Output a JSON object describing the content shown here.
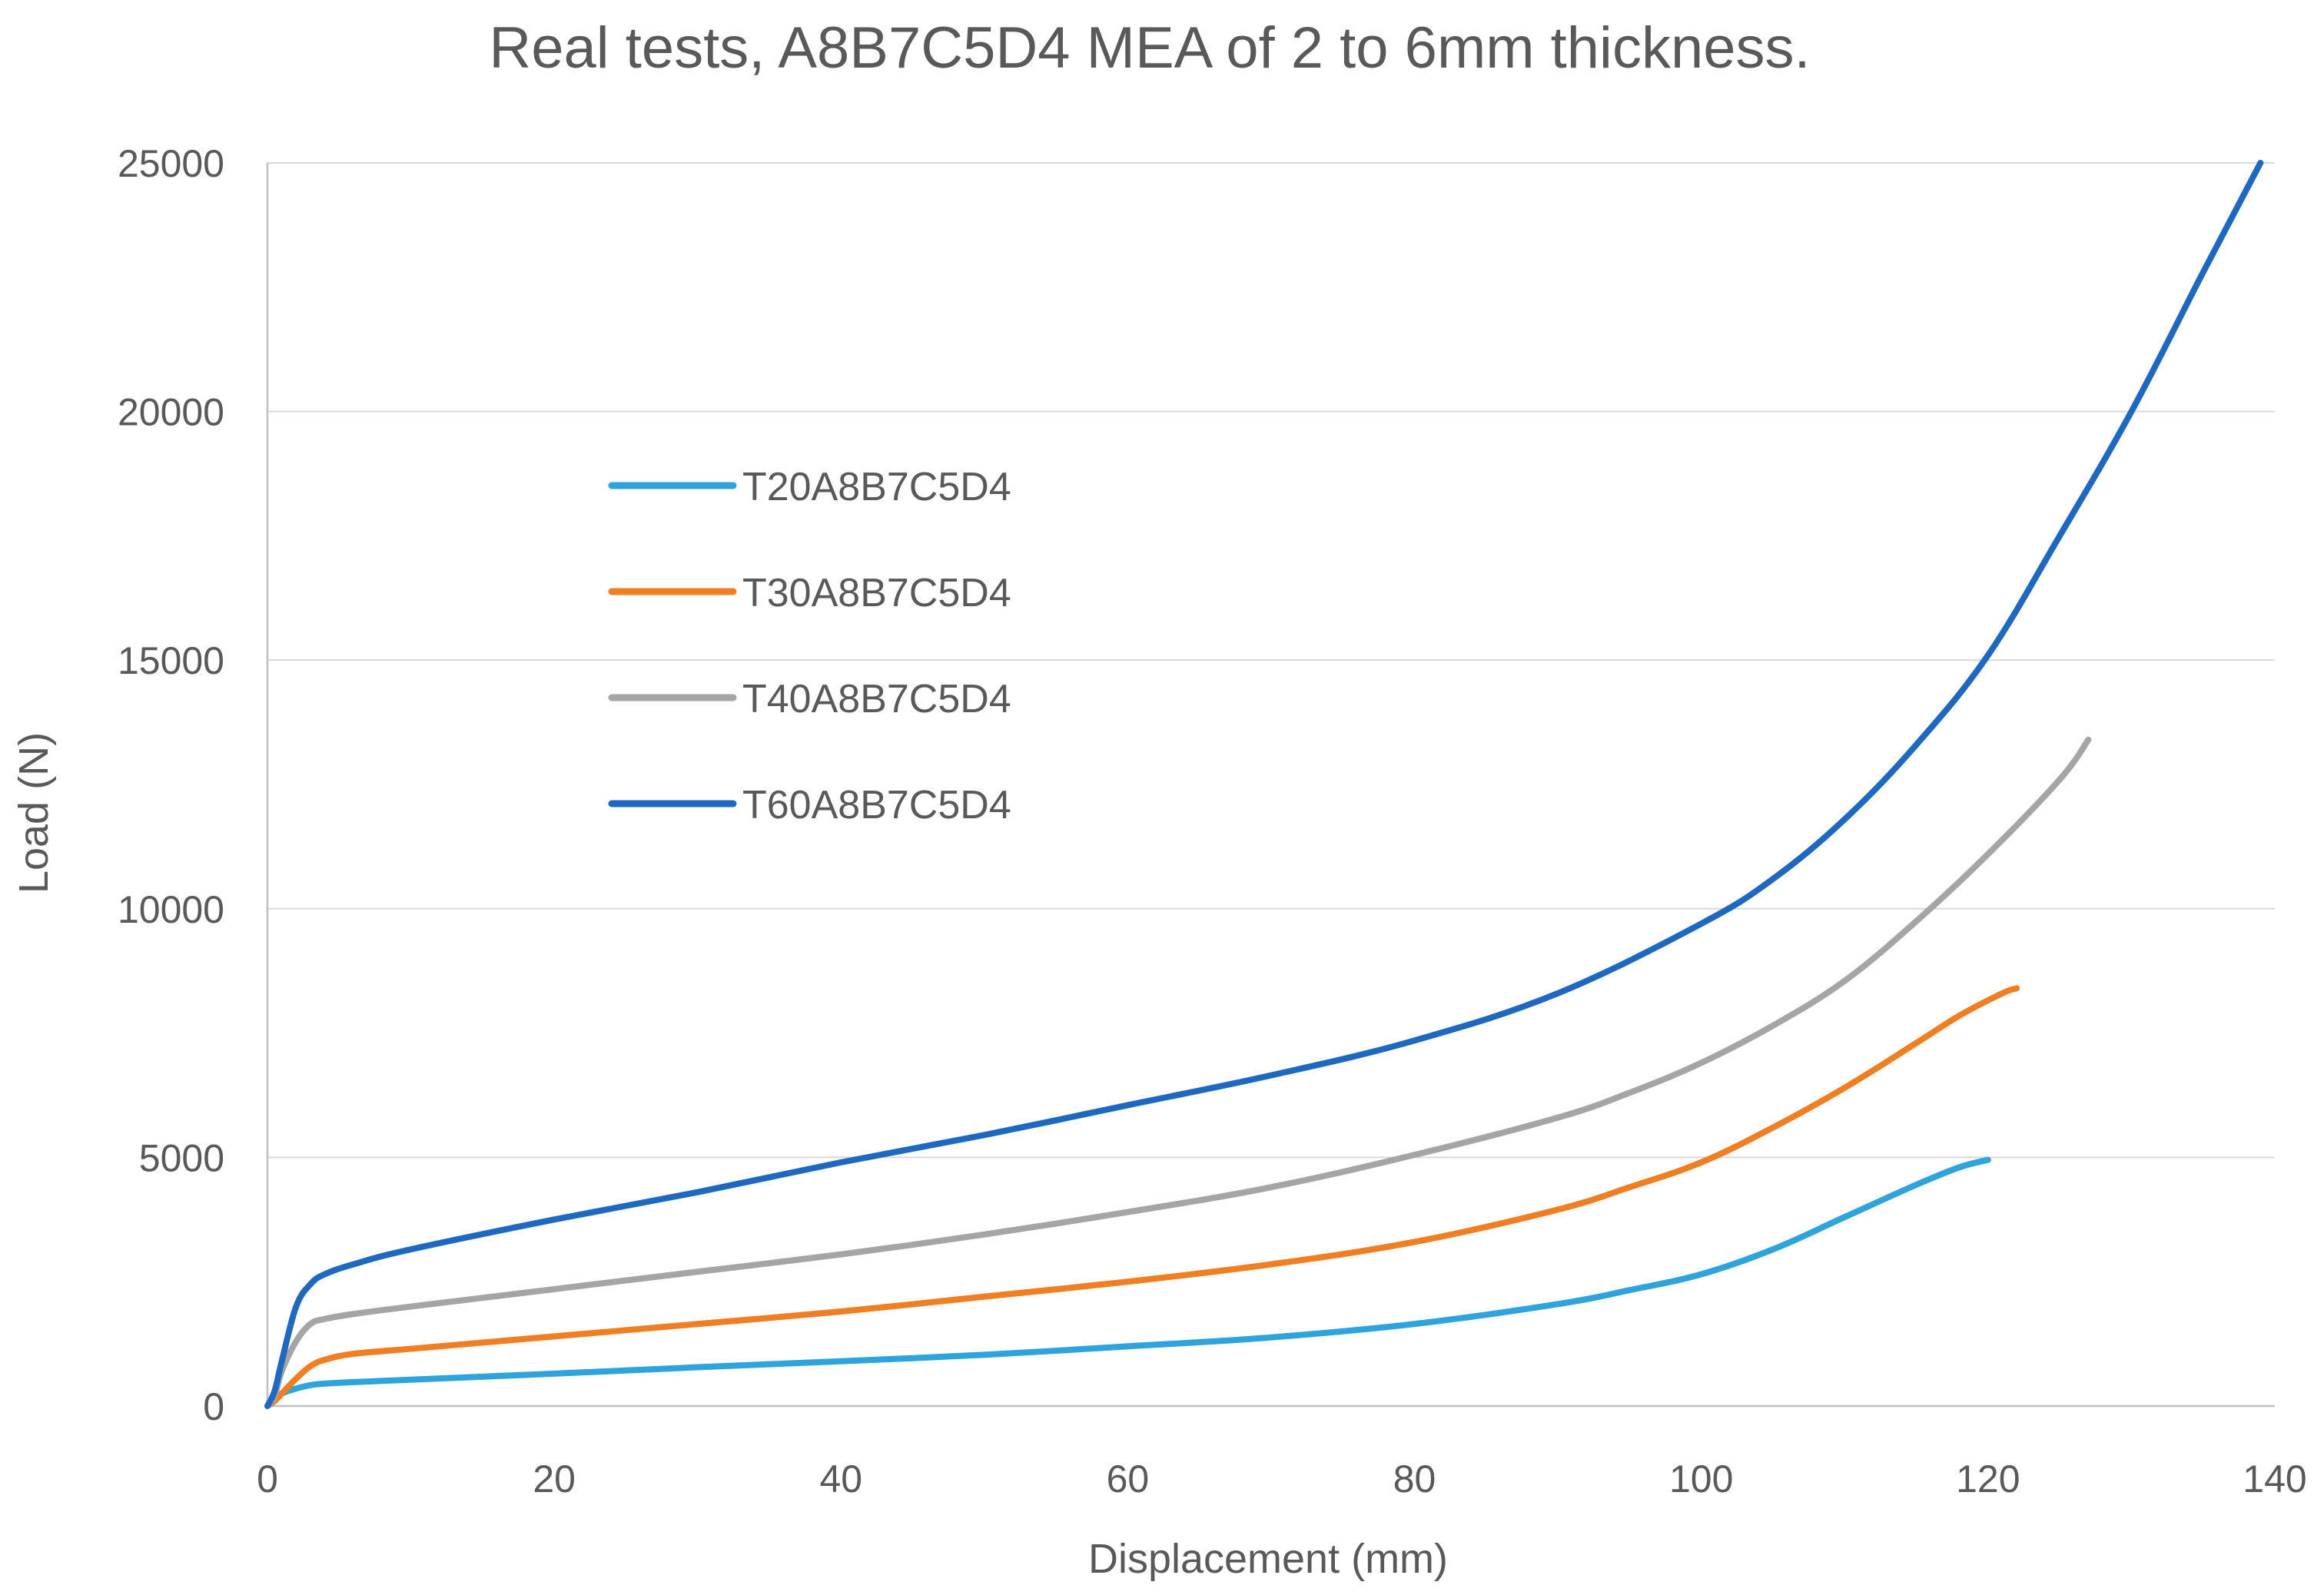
{
  "chart_data": {
    "type": "line",
    "title": "Real tests, A8B7C5D4 MEA of 2 to 6mm thickness.",
    "xlabel": "Displacement (mm)",
    "ylabel": "Load (N)",
    "xlim": [
      0,
      140
    ],
    "ylim": [
      0,
      25000
    ],
    "x_ticks": [
      0,
      20,
      40,
      60,
      80,
      100,
      120,
      140
    ],
    "y_ticks": [
      0,
      5000,
      10000,
      15000,
      20000,
      25000
    ],
    "x_tick_labels": [
      "0",
      "20",
      "40",
      "60",
      "80",
      "100",
      "120",
      "140"
    ],
    "y_tick_labels": [
      "0",
      "5000",
      "10000",
      "15000",
      "20000",
      "25000"
    ],
    "grid": "horizontal",
    "legend_position": "upper-left inside plot",
    "series": [
      {
        "name": "T20A8B7C5D4",
        "color": "#2FA3DC",
        "x": [
          0,
          0.5,
          1,
          2,
          3,
          4,
          6,
          10,
          20,
          30,
          40,
          50,
          60,
          70,
          80,
          90,
          95,
          100,
          105,
          110,
          115,
          118,
          120
        ],
        "y": [
          0,
          100,
          250,
          350,
          420,
          450,
          480,
          530,
          650,
          780,
          900,
          1030,
          1200,
          1380,
          1650,
          2050,
          2330,
          2650,
          3150,
          3800,
          4450,
          4800,
          4950
        ]
      },
      {
        "name": "T30A8B7C5D4",
        "color": "#F07F23",
        "x": [
          0,
          0.5,
          1,
          2,
          3,
          4,
          6,
          10,
          20,
          30,
          40,
          50,
          60,
          70,
          80,
          90,
          95,
          100,
          105,
          110,
          115,
          118,
          121,
          122
        ],
        "y": [
          0,
          100,
          250,
          550,
          800,
          930,
          1050,
          1150,
          1400,
          1650,
          1900,
          2200,
          2500,
          2850,
          3300,
          3950,
          4400,
          4900,
          5600,
          6400,
          7300,
          7850,
          8300,
          8400
        ]
      },
      {
        "name": "T40A8B7C5D4",
        "color": "#A5A5A5",
        "x": [
          0,
          0.5,
          1,
          2,
          3,
          4,
          6,
          10,
          20,
          30,
          40,
          50,
          60,
          70,
          80,
          90,
          95,
          100,
          105,
          110,
          115,
          120,
          125,
          127
        ],
        "y": [
          0,
          200,
          700,
          1300,
          1650,
          1750,
          1850,
          2000,
          2350,
          2700,
          3050,
          3450,
          3900,
          4400,
          5050,
          5800,
          6300,
          6900,
          7650,
          8550,
          9750,
          11100,
          12600,
          13400
        ]
      },
      {
        "name": "T60A8B7C5D4",
        "color": "#1F68BF",
        "x": [
          0,
          0.5,
          1,
          2,
          3,
          4,
          6,
          10,
          20,
          30,
          40,
          50,
          60,
          70,
          80,
          90,
          100,
          105,
          110,
          115,
          120,
          125,
          130,
          135,
          139
        ],
        "y": [
          0,
          300,
          900,
          2000,
          2450,
          2650,
          2850,
          3150,
          3750,
          4300,
          4900,
          5450,
          6050,
          6650,
          7350,
          8300,
          9700,
          10600,
          11800,
          13300,
          15100,
          17500,
          20000,
          22800,
          25000
        ]
      }
    ]
  }
}
